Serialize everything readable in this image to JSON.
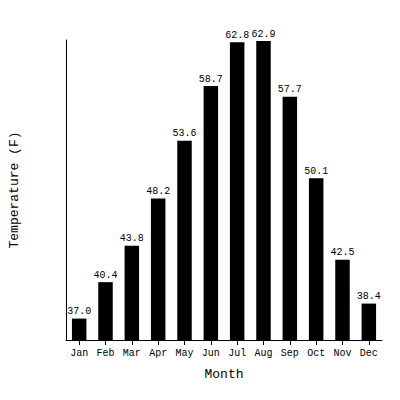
{
  "chart_data": {
    "type": "bar",
    "categories": [
      "Jan",
      "Feb",
      "Mar",
      "Apr",
      "May",
      "Jun",
      "Jul",
      "Aug",
      "Sep",
      "Oct",
      "Nov",
      "Dec"
    ],
    "values": [
      37.0,
      40.4,
      43.8,
      48.2,
      53.6,
      58.7,
      62.8,
      62.9,
      57.7,
      50.1,
      42.5,
      38.4
    ],
    "value_labels": [
      "37.0",
      "40.4",
      "43.8",
      "48.2",
      "53.6",
      "58.7",
      "62.8",
      "62.9",
      "57.7",
      "50.1",
      "42.5",
      "38.4"
    ],
    "color": "#000000",
    "x_label": "Month",
    "y_label": "Temperature (F)",
    "ylim": [
      35,
      63
    ],
    "grid": false,
    "data_labels": true,
    "tick_labels": "x"
  }
}
